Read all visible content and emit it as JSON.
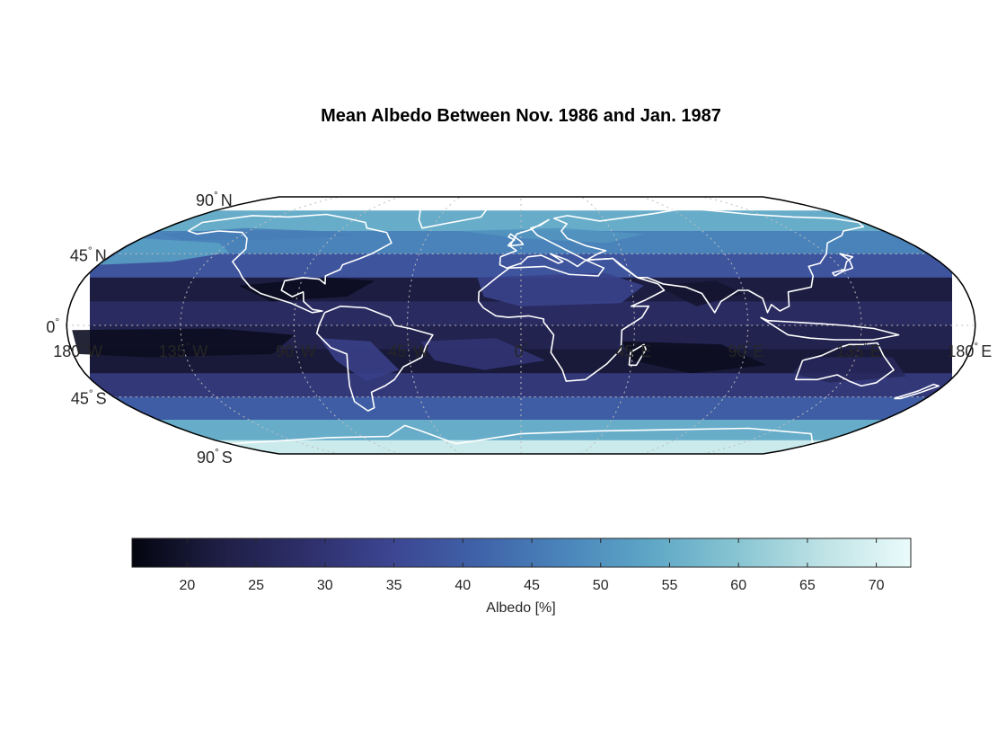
{
  "title": "Mean Albedo Between Nov. 1986 and Jan. 1987",
  "projection": "Robinson",
  "colormap": [
    "#04050f",
    "#1e1e44",
    "#2e2f6a",
    "#3c4591",
    "#3f62a8",
    "#4a85bb",
    "#5ea7c6",
    "#88c5d2",
    "#bfe3e6",
    "#eafbfb"
  ],
  "coastline_color": "#ffffff",
  "graticule_color": "#bdbdbd",
  "lat_labels": [
    {
      "value": 90,
      "text": "90",
      "hemi": "N"
    },
    {
      "value": 45,
      "text": "45",
      "hemi": "N"
    },
    {
      "value": 0,
      "text": "0",
      "hemi": ""
    },
    {
      "value": -45,
      "text": "45",
      "hemi": "S"
    },
    {
      "value": -90,
      "text": "90",
      "hemi": "S"
    }
  ],
  "lon_labels": [
    {
      "value": -180,
      "text": "180",
      "hemi": "W"
    },
    {
      "value": -135,
      "text": "135",
      "hemi": "W"
    },
    {
      "value": -90,
      "text": "90",
      "hemi": "W"
    },
    {
      "value": -45,
      "text": "45",
      "hemi": "W"
    },
    {
      "value": 0,
      "text": "0",
      "hemi": ""
    },
    {
      "value": 45,
      "text": "45",
      "hemi": "E"
    },
    {
      "value": 90,
      "text": "90",
      "hemi": "E"
    },
    {
      "value": 135,
      "text": "135",
      "hemi": "E"
    },
    {
      "value": 180,
      "text": "180",
      "hemi": "E"
    }
  ],
  "colorbar": {
    "label": "Albedo [%]",
    "range": [
      16,
      72.5
    ],
    "ticks": [
      20,
      25,
      30,
      35,
      40,
      45,
      50,
      55,
      60,
      65,
      70
    ]
  },
  "chart_data": {
    "type": "heatmap",
    "title": "Mean Albedo Between Nov. 1986 and Jan. 1987",
    "variable": "Albedo [%]",
    "color_range": [
      16,
      72.5
    ],
    "latitude_bands": [
      {
        "lat_range": [
          60,
          75
        ],
        "albedo": 55
      },
      {
        "lat_range": [
          45,
          60
        ],
        "albedo": 47
      },
      {
        "lat_range": [
          30,
          45
        ],
        "albedo": 38
      },
      {
        "lat_range": [
          15,
          30
        ],
        "albedo": 22
      },
      {
        "lat_range": [
          0,
          15
        ],
        "albedo": 27
      },
      {
        "lat_range": [
          -15,
          0
        ],
        "albedo": 24
      },
      {
        "lat_range": [
          -30,
          -15
        ],
        "albedo": 21
      },
      {
        "lat_range": [
          -45,
          -30
        ],
        "albedo": 31
      },
      {
        "lat_range": [
          -60,
          -45
        ],
        "albedo": 40
      },
      {
        "lat_range": [
          -75,
          -60
        ],
        "albedo": 55
      },
      {
        "lat_range": [
          -90,
          -75
        ],
        "albedo": 68
      }
    ]
  }
}
